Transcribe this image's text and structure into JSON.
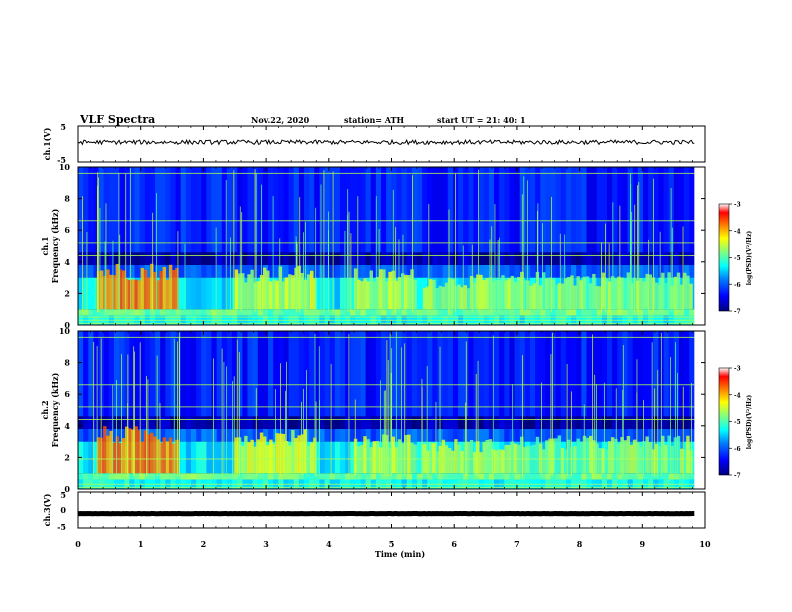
{
  "header": {
    "title": "VLF Spectra",
    "date": "Nov.22, 2020",
    "station": "station= ATH",
    "start": "start  UT  =   21: 40: 1"
  },
  "xaxis": {
    "label": "Time  (min)",
    "ticks": [
      "0",
      "1",
      "2",
      "3",
      "4",
      "5",
      "6",
      "7",
      "8",
      "9",
      "10"
    ]
  },
  "panels": {
    "ch1_volt": {
      "label": "ch.1(V)",
      "ticks": [
        "5",
        "-5"
      ]
    },
    "ch1_spec": {
      "label": "ch.1",
      "sublabel": "Frequency  (kHz)",
      "ticks": [
        "10",
        "8",
        "6",
        "4",
        "2",
        "0"
      ]
    },
    "ch2_spec": {
      "label": "ch.2",
      "sublabel": "Frequency  (kHz)",
      "ticks": [
        "10",
        "8",
        "6",
        "4",
        "2",
        "0"
      ]
    },
    "ch3_volt": {
      "label": "ch.3(V)",
      "ticks": [
        "5",
        "0",
        "-5"
      ]
    }
  },
  "colorbar": {
    "label": "log(PSD)(V²/Hz)",
    "ticks": [
      "-3",
      "-4",
      "-5",
      "-6",
      "-7"
    ],
    "range": [
      -7,
      -3
    ],
    "colors": [
      "#00007f",
      "#0000ff",
      "#0080ff",
      "#00ffff",
      "#80ff80",
      "#ffff00",
      "#ff8000",
      "#ff0000",
      "#ffffff"
    ]
  },
  "chart_data": {
    "type": "heatmap",
    "title": "VLF Spectra",
    "xlabel": "Time  (min)",
    "xlim": [
      0,
      10
    ],
    "data_end_min": 9.83,
    "panels": [
      {
        "name": "ch.1(V)",
        "type": "line",
        "ylim": [
          -5,
          5
        ],
        "approx_level": 0.5,
        "approx_amplitude": 0.6
      },
      {
        "name": "ch.1",
        "type": "heatmap",
        "ylabel": "Frequency  (kHz)",
        "ylim": [
          0,
          10
        ],
        "bands": [
          {
            "f0": 0.0,
            "f1": 0.6,
            "log_psd": -5.3
          },
          {
            "f0": 0.6,
            "f1": 1.0,
            "log_psd": -4.9
          },
          {
            "f0": 1.0,
            "f1": 3.0,
            "log_psd": -5.4
          },
          {
            "f0": 3.0,
            "f1": 3.8,
            "log_psd": -6.0
          },
          {
            "f0": 3.8,
            "f1": 4.6,
            "log_psd": -6.8
          },
          {
            "f0": 4.6,
            "f1": 10.0,
            "log_psd": -6.3
          }
        ],
        "lines_khz": [
          0.1,
          0.3,
          0.5,
          4.4,
          5.2,
          6.6,
          9.6
        ],
        "emission_bursts": [
          {
            "t0": 0.3,
            "t1": 1.6,
            "f1": 4.0,
            "log_psd": -3.8
          },
          {
            "t0": 2.5,
            "t1": 3.8,
            "f1": 3.8,
            "log_psd": -4.5
          },
          {
            "t0": 4.4,
            "t1": 5.4,
            "f1": 3.6,
            "log_psd": -4.6
          },
          {
            "t0": 5.5,
            "t1": 7.0,
            "f1": 3.2,
            "log_psd": -4.7
          },
          {
            "t0": 7.0,
            "t1": 9.8,
            "f1": 3.4,
            "log_psd": -4.8
          }
        ]
      },
      {
        "name": "ch.2",
        "type": "heatmap",
        "ylabel": "Frequency  (kHz)",
        "ylim": [
          0,
          10
        ],
        "bands": [
          {
            "f0": 0.0,
            "f1": 0.6,
            "log_psd": -5.3
          },
          {
            "f0": 0.6,
            "f1": 1.0,
            "log_psd": -4.9
          },
          {
            "f0": 1.0,
            "f1": 3.0,
            "log_psd": -5.4
          },
          {
            "f0": 3.0,
            "f1": 3.8,
            "log_psd": -6.0
          },
          {
            "f0": 3.8,
            "f1": 4.6,
            "log_psd": -6.8
          },
          {
            "f0": 4.6,
            "f1": 10.0,
            "log_psd": -6.3
          }
        ],
        "lines_khz": [
          0.1,
          0.3,
          1.9,
          4.4,
          5.2,
          6.6,
          9.6
        ],
        "emission_bursts": [
          {
            "t0": 0.3,
            "t1": 1.6,
            "f1": 4.0,
            "log_psd": -3.8
          },
          {
            "t0": 2.5,
            "t1": 3.8,
            "f1": 3.8,
            "log_psd": -4.5
          },
          {
            "t0": 4.4,
            "t1": 5.4,
            "f1": 3.6,
            "log_psd": -4.6
          },
          {
            "t0": 5.5,
            "t1": 7.0,
            "f1": 3.2,
            "log_psd": -4.7
          },
          {
            "t0": 7.0,
            "t1": 9.8,
            "f1": 3.4,
            "log_psd": -4.8
          }
        ]
      },
      {
        "name": "ch.3(V)",
        "type": "line",
        "ylim": [
          -5,
          5
        ],
        "approx_level": -1.0,
        "approx_amplitude": 0.2
      }
    ],
    "colorbar": {
      "label": "log(PSD)(V²/Hz)",
      "range": [
        -7,
        -3
      ],
      "ticks": [
        -3,
        -4,
        -5,
        -6,
        -7
      ]
    }
  }
}
